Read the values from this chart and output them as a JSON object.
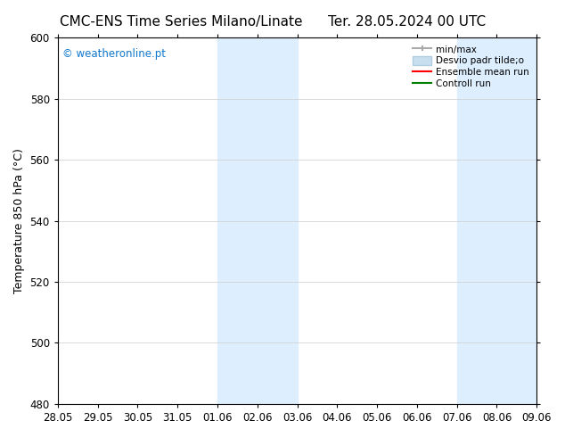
{
  "title_left": "CMC-ENS Time Series Milano/Linate",
  "title_right": "Ter. 28.05.2024 00 UTC",
  "ylabel": "Temperature 850 hPa (°C)",
  "ylim": [
    480,
    600
  ],
  "yticks": [
    480,
    500,
    520,
    540,
    560,
    580,
    600
  ],
  "xlim": [
    0,
    12
  ],
  "xtick_positions": [
    0,
    1,
    2,
    3,
    4,
    5,
    6,
    7,
    8,
    9,
    10,
    11,
    12
  ],
  "xtick_labels": [
    "28.05",
    "29.05",
    "30.05",
    "31.05",
    "01.06",
    "02.06",
    "03.06",
    "04.06",
    "05.06",
    "06.06",
    "07.06",
    "08.06",
    "09.06"
  ],
  "shaded_bands": [
    {
      "x_start": 4,
      "x_end": 6,
      "color": "#ddeeff"
    },
    {
      "x_start": 10,
      "x_end": 12,
      "color": "#ddeeff"
    }
  ],
  "watermark_text": "© weatheronline.pt",
  "watermark_color": "#1177cc",
  "bg_color": "#ffffff",
  "plot_bg_color": "#ffffff",
  "border_color": "#000000",
  "grid_color": "#cccccc",
  "title_fontsize": 11,
  "label_fontsize": 9,
  "tick_fontsize": 8.5,
  "legend_minmax_color": "#aaaaaa",
  "legend_desvio_color": "#c8dff0",
  "legend_desvio_edge": "#b0cce0",
  "legend_ensemble_color": "red",
  "legend_control_color": "green"
}
